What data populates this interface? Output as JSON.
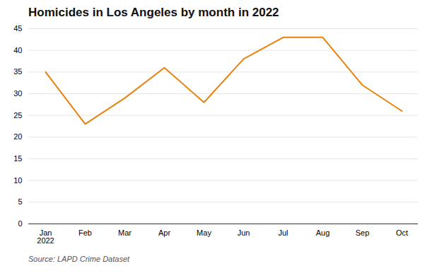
{
  "chart_data": {
    "type": "line",
    "title": "Homicides in Los Angeles by month in 2022",
    "categories": [
      "Jan\n2022",
      "Feb",
      "Mar",
      "Apr",
      "May",
      "Jun",
      "Jul",
      "Aug",
      "Sep",
      "Oct"
    ],
    "values": [
      35,
      23,
      29,
      36,
      28,
      38,
      43,
      43,
      32,
      26
    ],
    "color": "#E8820C",
    "ylim": [
      0,
      45
    ],
    "yticks": [
      0,
      5,
      10,
      15,
      20,
      25,
      30,
      35,
      40,
      45
    ],
    "grid": true,
    "source": "Source: LAPD Crime Dataset"
  }
}
